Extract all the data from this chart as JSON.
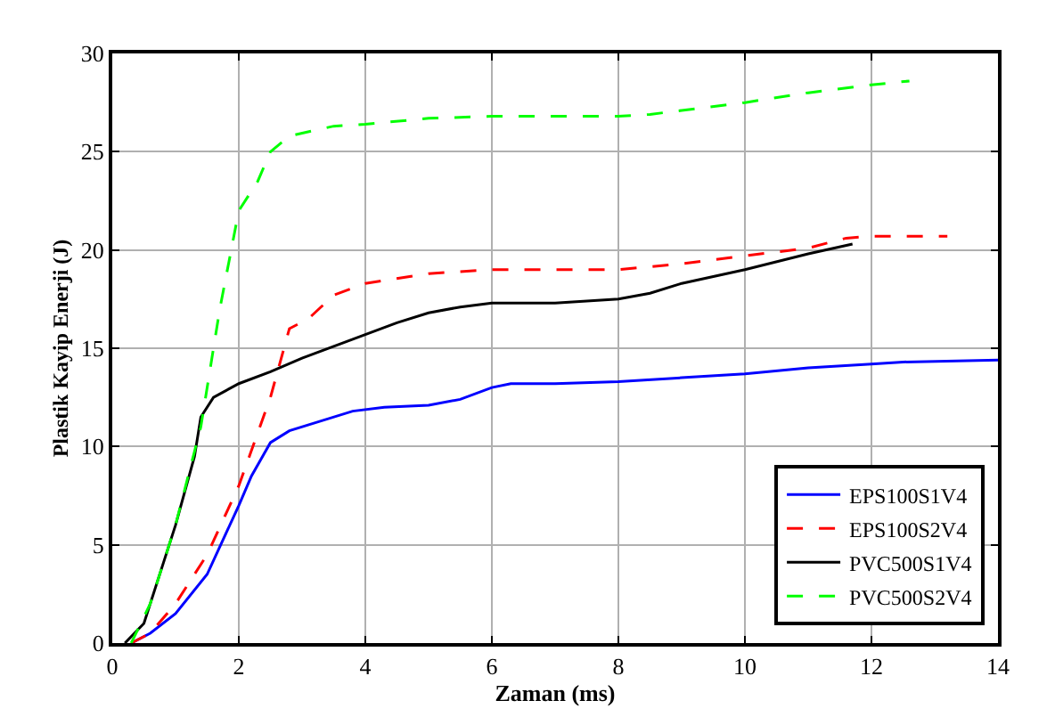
{
  "chart_data": {
    "type": "line",
    "xlabel": "Zaman (ms)",
    "ylabel": "Plastik Kayip Enerji (J)",
    "xlim": [
      0,
      14
    ],
    "xticks": [
      0,
      2,
      4,
      6,
      8,
      10,
      12,
      14
    ],
    "ylim": [
      0,
      30
    ],
    "yticks": [
      0,
      5,
      10,
      15,
      20,
      25,
      30
    ],
    "grid": true,
    "legend": "bottom right",
    "series": [
      {
        "name": "EPS100S1V4",
        "color": "#0000ff",
        "line_style": "solid",
        "x": [
          0.3,
          0.6,
          1,
          1.5,
          2,
          2.2,
          2.5,
          2.8,
          3.3,
          3.8,
          4.3,
          5,
          5.5,
          6,
          6.3,
          7,
          8,
          9,
          10,
          11,
          12,
          12.5,
          14
        ],
        "values": [
          0,
          0.5,
          1.5,
          3.5,
          7,
          8.5,
          10.2,
          10.8,
          11.3,
          11.8,
          12,
          12.1,
          12.4,
          13,
          13.2,
          13.2,
          13.3,
          13.5,
          13.7,
          14,
          14.2,
          14.3,
          14.4
        ]
      },
      {
        "name": "EPS100S2V4",
        "color": "#ff0000",
        "line_style": "dashed",
        "x": [
          0.3,
          0.6,
          1,
          1.5,
          2,
          2.5,
          2.8,
          3.1,
          3.5,
          4,
          5,
          6,
          8,
          9,
          10,
          11,
          11.6,
          12,
          13.2
        ],
        "values": [
          0,
          0.5,
          2,
          4.5,
          8,
          12.5,
          16,
          16.5,
          17.7,
          18.3,
          18.8,
          19,
          19,
          19.3,
          19.7,
          20.1,
          20.6,
          20.7,
          20.7
        ]
      },
      {
        "name": "PVC500S1V4",
        "color": "#000000",
        "line_style": "solid",
        "x": [
          0.2,
          0.5,
          1,
          1.3,
          1.4,
          1.6,
          2,
          2.5,
          3,
          3.5,
          4,
          4.5,
          5,
          5.5,
          6,
          7,
          8,
          8.5,
          9,
          10,
          11,
          11.7
        ],
        "values": [
          0,
          1,
          6,
          9.5,
          11.5,
          12.5,
          13.2,
          13.8,
          14.5,
          15.1,
          15.7,
          16.3,
          16.8,
          17.1,
          17.3,
          17.3,
          17.5,
          17.8,
          18.3,
          19,
          19.8,
          20.3
        ]
      },
      {
        "name": "PVC500S2V4",
        "color": "#00ff00",
        "line_style": "dashed",
        "x": [
          0.3,
          0.6,
          1,
          1.4,
          1.7,
          2,
          2.3,
          2.5,
          2.8,
          3.5,
          4,
          5,
          6,
          8,
          8.5,
          9,
          10,
          11,
          12,
          12.6
        ],
        "values": [
          0,
          2,
          6,
          11,
          17,
          22,
          23.5,
          25,
          25.8,
          26.3,
          26.4,
          26.7,
          26.8,
          26.8,
          26.9,
          27.1,
          27.5,
          28,
          28.4,
          28.6
        ]
      }
    ]
  }
}
